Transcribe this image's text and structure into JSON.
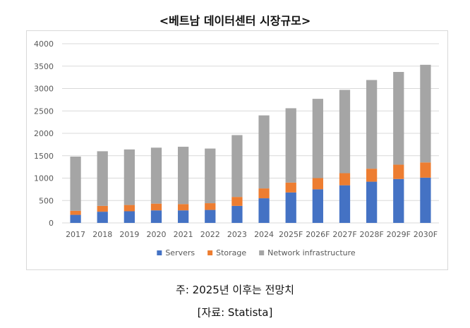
{
  "page": {
    "title": "<베트남 데이터센터 시장규모>",
    "note": "주: 2025년 이후는 전망치",
    "source": "[자료: Statista]"
  },
  "colors": {
    "servers": "#4472c4",
    "storage": "#ed7d31",
    "network": "#a5a5a5",
    "grid": "#d9d9d9",
    "axis_text": "#595959"
  },
  "chart_data": {
    "type": "bar",
    "stacked": true,
    "title": "<베트남 데이터센터 시장규모>",
    "xlabel": "",
    "ylabel": "",
    "ylim": [
      0,
      4000
    ],
    "yticks": [
      0,
      500,
      1000,
      1500,
      2000,
      2500,
      3000,
      3500,
      4000
    ],
    "grid": true,
    "legend_position": "bottom",
    "categories": [
      "2017",
      "2018",
      "2019",
      "2020",
      "2021",
      "2022",
      "2023",
      "2024",
      "2025F",
      "2026F",
      "2027F",
      "2028F",
      "2029F",
      "2030F"
    ],
    "series": [
      {
        "name": "Servers",
        "color_key": "servers",
        "values": [
          180,
          250,
          260,
          280,
          280,
          290,
          380,
          550,
          680,
          750,
          840,
          920,
          980,
          1010
        ]
      },
      {
        "name": "Storage",
        "color_key": "storage",
        "values": [
          90,
          130,
          140,
          150,
          140,
          150,
          200,
          220,
          220,
          250,
          270,
          290,
          320,
          340
        ]
      },
      {
        "name": "Network infrastructure",
        "color_key": "network",
        "values": [
          1210,
          1220,
          1240,
          1250,
          1280,
          1220,
          1380,
          1630,
          1660,
          1770,
          1860,
          1980,
          2070,
          2180
        ]
      }
    ]
  }
}
